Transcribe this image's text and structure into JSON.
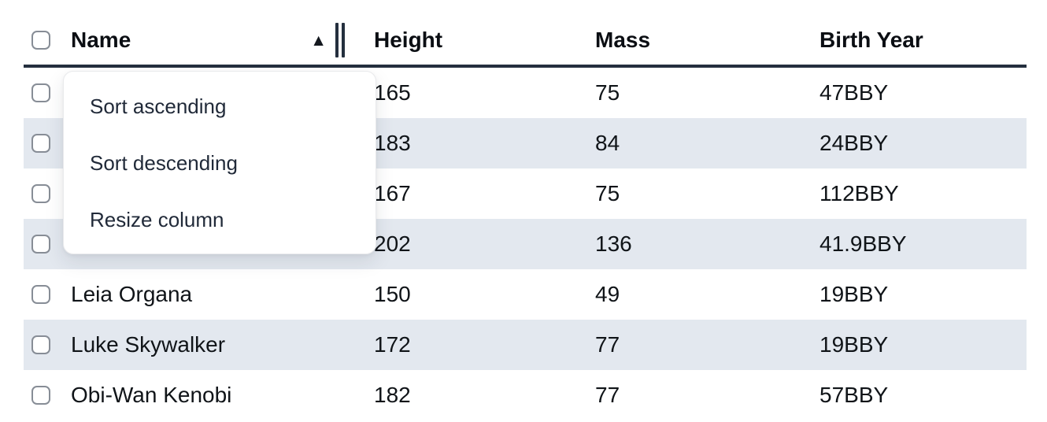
{
  "table": {
    "columns": {
      "name": "Name",
      "height": "Height",
      "mass": "Mass",
      "birth_year": "Birth Year"
    },
    "sort": {
      "column": "Name",
      "direction": "ascending",
      "indicator": "▲"
    },
    "rows": [
      {
        "name": "",
        "height": "165",
        "mass": "75",
        "birth_year": "47BBY"
      },
      {
        "name": "",
        "height": "183",
        "mass": "84",
        "birth_year": "24BBY"
      },
      {
        "name": "",
        "height": "167",
        "mass": "75",
        "birth_year": "112BBY"
      },
      {
        "name": "",
        "height": "202",
        "mass": "136",
        "birth_year": "41.9BBY"
      },
      {
        "name": "Leia Organa",
        "height": "150",
        "mass": "49",
        "birth_year": "19BBY"
      },
      {
        "name": "Luke Skywalker",
        "height": "172",
        "mass": "77",
        "birth_year": "19BBY"
      },
      {
        "name": "Obi-Wan Kenobi",
        "height": "182",
        "mass": "77",
        "birth_year": "57BBY"
      }
    ]
  },
  "context_menu": {
    "items": [
      {
        "label": "Sort ascending"
      },
      {
        "label": "Sort descending"
      },
      {
        "label": "Resize column"
      }
    ]
  },
  "colors": {
    "header_border": "#242f3e",
    "stripe_row_bg": "#e3e8ef",
    "menu_text": "#212a39",
    "checkbox_border": "#878d96"
  }
}
